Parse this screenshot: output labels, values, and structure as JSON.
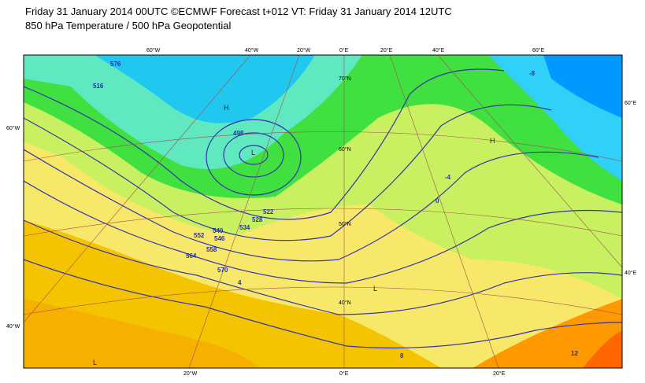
{
  "header": {
    "line1": "Friday 31 January 2014 00UTC ©ECMWF Forecast t+012 VT: Friday 31 January 2014 12UTC",
    "line2": "850 hPa Temperature / 500 hPa Geopotential"
  },
  "graticule_labels": [
    "60°W",
    "40°W",
    "20°W",
    "0°E",
    "20°E",
    "40°E",
    "60°E",
    "60°W",
    "40°W",
    "60°E",
    "40°E",
    "20°W",
    "0°E",
    "20°E",
    "70°N",
    "60°N",
    "50°N",
    "40°N"
  ],
  "contour_labels": [
    "498",
    "516",
    "522",
    "528",
    "534",
    "540",
    "546",
    "552",
    "558",
    "564",
    "570",
    "576",
    "-8",
    "-4",
    "0",
    "4",
    "8",
    "12"
  ],
  "pressure_centers": [
    "L",
    "H",
    "H",
    "L",
    "L"
  ]
}
